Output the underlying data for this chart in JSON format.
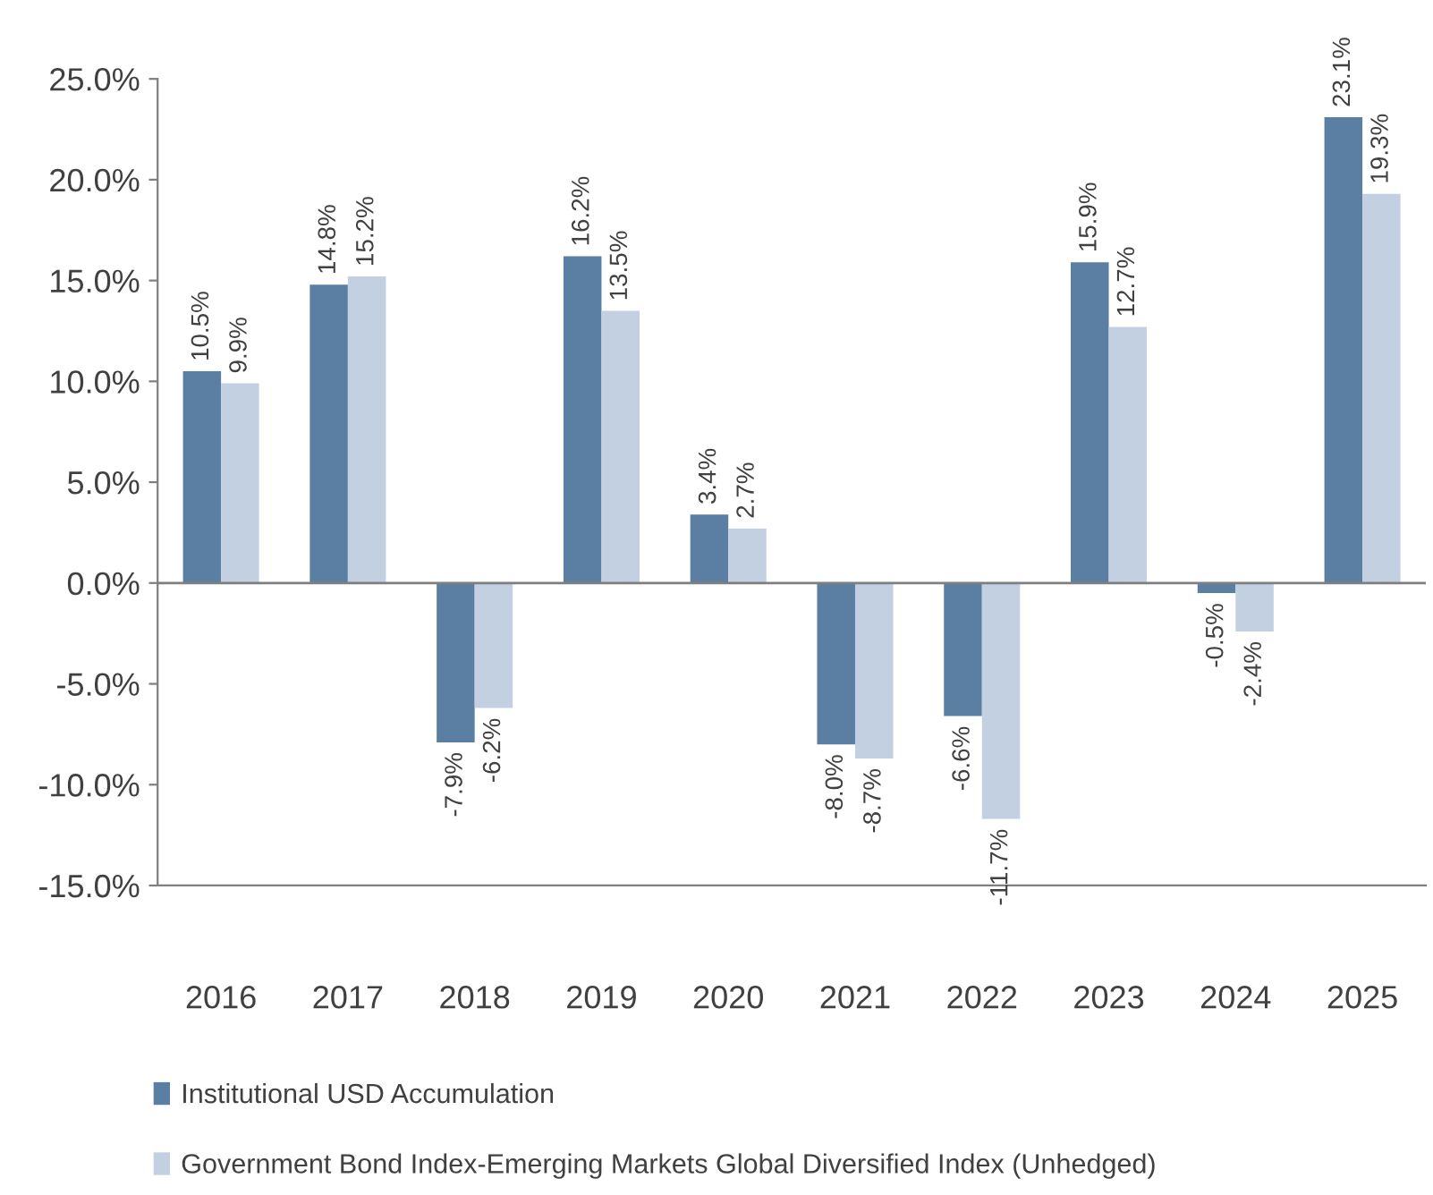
{
  "chart_data": {
    "type": "bar",
    "categories": [
      "2016",
      "2017",
      "2018",
      "2019",
      "2020",
      "2021",
      "2022",
      "2023",
      "2024",
      "2025"
    ],
    "series": [
      {
        "name": "Institutional USD Accumulation",
        "color": "#5b7fa3",
        "values": [
          10.5,
          14.8,
          -7.9,
          16.2,
          3.4,
          -8.0,
          -6.6,
          15.9,
          -0.5,
          23.1
        ],
        "value_labels": [
          "10.5%",
          "14.8%",
          "-7.9%",
          "16.2%",
          "3.4%",
          "-8.0%",
          "-6.6%",
          "15.9%",
          "-0.5%",
          "23.1%"
        ]
      },
      {
        "name": "Government Bond Index-Emerging Markets Global Diversified Index (Unhedged)",
        "color": "#c3d0e2",
        "values": [
          9.9,
          15.2,
          -6.2,
          13.5,
          2.7,
          -8.7,
          -11.7,
          12.7,
          -2.4,
          19.3
        ],
        "value_labels": [
          "9.9%",
          "15.2%",
          "-6.2%",
          "13.5%",
          "2.7%",
          "-8.7%",
          "-11.7%",
          "12.7%",
          "-2.4%",
          "19.3%"
        ]
      }
    ],
    "ylim": [
      -15,
      25
    ],
    "yticks": [
      {
        "value": -15,
        "label": "-15.0%"
      },
      {
        "value": -10,
        "label": "-10.0%"
      },
      {
        "value": -5,
        "label": "-5.0%"
      },
      {
        "value": 0,
        "label": "0.0%"
      },
      {
        "value": 5,
        "label": "5.0%"
      },
      {
        "value": 10,
        "label": "10.0%"
      },
      {
        "value": 15,
        "label": "15.0%"
      },
      {
        "value": 20,
        "label": "20.0%"
      },
      {
        "value": 25,
        "label": "25.0%"
      }
    ],
    "ref_lines": [
      {
        "axis": "y",
        "value": 0,
        "color": "#7f7f7f"
      }
    ],
    "grid": false,
    "legend": "bottom"
  }
}
